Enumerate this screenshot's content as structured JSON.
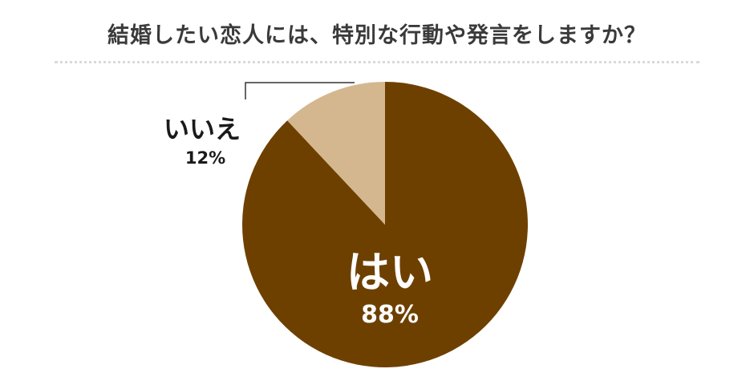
{
  "title": "結婚したい恋人には、特別な行動や発言をしますか？",
  "chart_data": {
    "type": "pie",
    "title": "結婚したい恋人には、特別な行動や発言をしますか？",
    "slices": [
      {
        "label": "はい",
        "value": 88,
        "value_label": "88%",
        "color": "#6e4000",
        "label_color": "#ffffff"
      },
      {
        "label": "いいえ",
        "value": 12,
        "value_label": "12%",
        "color": "#d4b78f",
        "label_color": "#1a1a1a"
      }
    ],
    "start": "12 o'clock",
    "direction": "clockwise",
    "legend": "none"
  }
}
